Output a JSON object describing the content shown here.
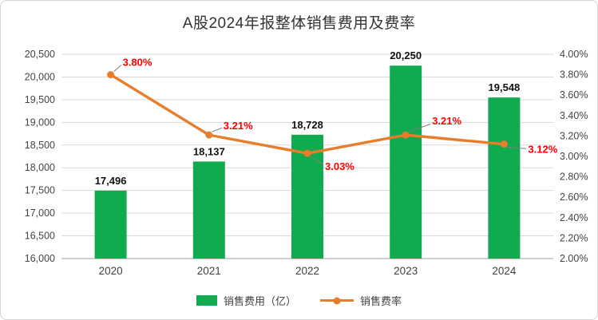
{
  "chart_data": {
    "type": "combo-bar-line",
    "title": "A股2024年报整体销售费用及费率",
    "categories": [
      "2020",
      "2021",
      "2022",
      "2023",
      "2024"
    ],
    "series": [
      {
        "name": "销售费用（亿）",
        "type": "bar",
        "axis": "left",
        "values": [
          17496,
          18137,
          18728,
          20250,
          19548
        ],
        "labels": [
          "17,496",
          "18,137",
          "18,728",
          "20,250",
          "19,548"
        ],
        "color": "#10ab4f"
      },
      {
        "name": "销售费率",
        "type": "line",
        "axis": "right",
        "values": [
          3.8,
          3.21,
          3.03,
          3.21,
          3.12
        ],
        "labels": [
          "3.80%",
          "3.21%",
          "3.03%",
          "3.21%",
          "3.12%"
        ],
        "color": "#e87d2c",
        "label_color": "#ff0000"
      }
    ],
    "left_axis": {
      "min": 16000,
      "max": 20500,
      "step": 500,
      "ticks": [
        "16,000",
        "16,500",
        "17,000",
        "17,500",
        "18,000",
        "18,500",
        "19,000",
        "19,500",
        "20,000",
        "20,500"
      ]
    },
    "right_axis": {
      "min": 2.0,
      "max": 4.0,
      "step": 0.2,
      "ticks": [
        "2.00%",
        "2.20%",
        "2.40%",
        "2.60%",
        "2.80%",
        "3.00%",
        "3.20%",
        "3.40%",
        "3.60%",
        "3.80%",
        "4.00%"
      ]
    },
    "grid": true,
    "legend_position": "bottom"
  }
}
